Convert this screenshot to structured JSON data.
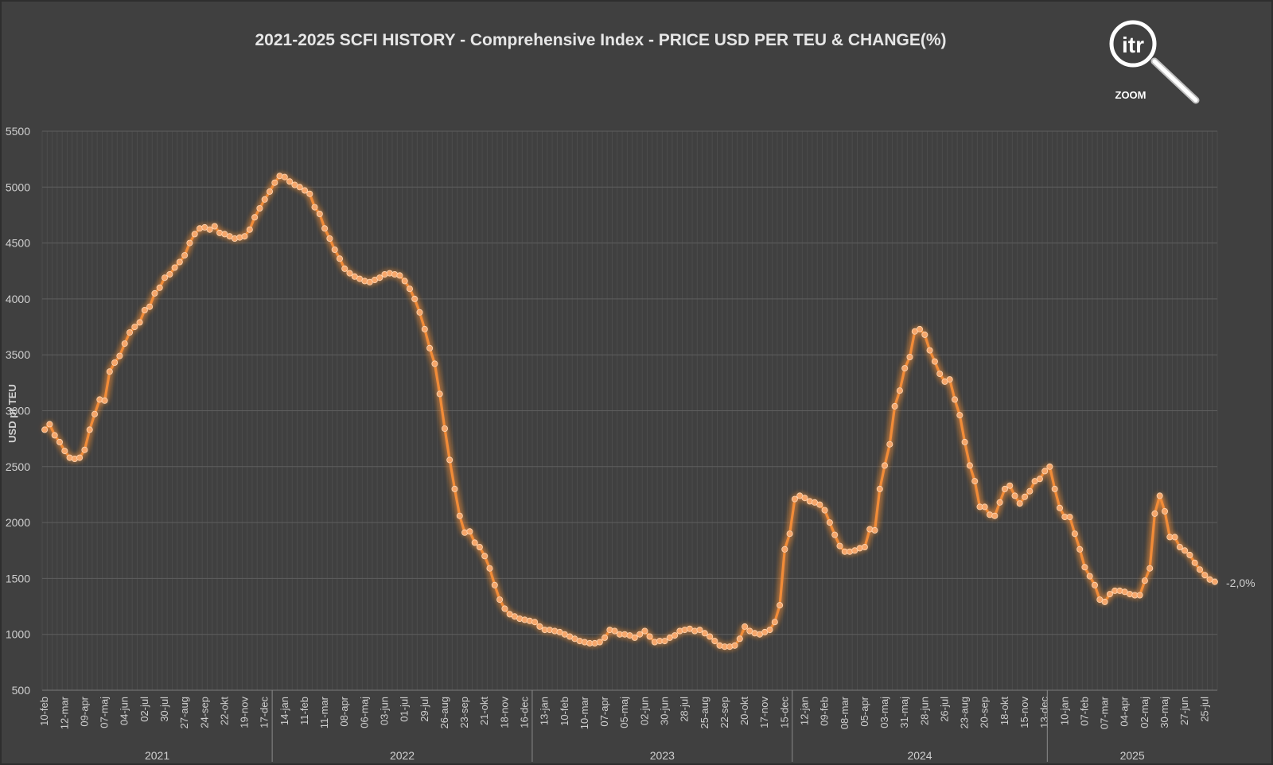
{
  "chart_data": {
    "type": "line",
    "title": "2021-2025 SCFI HISTORY - Comprehensive Index - PRICE USD PER TEU & CHANGE(%)",
    "ylabel": "USD pr TEU",
    "xlabel": "",
    "ylim": [
      500,
      5500
    ],
    "yticks": [
      500,
      1000,
      1500,
      2000,
      2500,
      3000,
      3500,
      4000,
      4500,
      5000,
      5500
    ],
    "grid": true,
    "line_color": "#f28c38",
    "end_label": "-2,0%",
    "x_tick_labels": [
      "10-feb",
      "12-mar",
      "09-apr",
      "07-maj",
      "04-jun",
      "02-jul",
      "30-jul",
      "27-aug",
      "24-sep",
      "22-okt",
      "19-nov",
      "17-dec",
      "14-jan",
      "11-feb",
      "11-mar",
      "08-apr",
      "06-maj",
      "03-jun",
      "01-jul",
      "29-jul",
      "26-aug",
      "23-sep",
      "21-okt",
      "18-nov",
      "16-dec",
      "13-jan",
      "10-feb",
      "10-mar",
      "07-apr",
      "05-maj",
      "02-jun",
      "30-jun",
      "28-jul",
      "25-aug",
      "22-sep",
      "20-okt",
      "17-nov",
      "15-dec",
      "12-jan",
      "09-feb",
      "08-mar",
      "05-apr",
      "03-maj",
      "31-maj",
      "28-jun",
      "26-jul",
      "23-aug",
      "20-sep",
      "18-okt",
      "15-nov",
      "13-dec",
      "10-jan",
      "07-feb",
      "07-mar",
      "04-apr",
      "02-maj",
      "30-maj",
      "27-jun",
      "25-jul"
    ],
    "x_tick_week_index": [
      0,
      4,
      8,
      12,
      16,
      20,
      24,
      28,
      32,
      36,
      40,
      44,
      48,
      52,
      56,
      60,
      64,
      68,
      72,
      76,
      80,
      84,
      88,
      92,
      96,
      100,
      104,
      108,
      112,
      116,
      120,
      124,
      128,
      132,
      136,
      140,
      144,
      148,
      152,
      156,
      160,
      164,
      168,
      172,
      176,
      180,
      184,
      188,
      192,
      196,
      200,
      204,
      208,
      212,
      216,
      220,
      224,
      228,
      232
    ],
    "years": [
      {
        "label": "2021",
        "start_week": 0,
        "end_week": 46
      },
      {
        "label": "2022",
        "start_week": 46,
        "end_week": 98
      },
      {
        "label": "2023",
        "start_week": 98,
        "end_week": 150
      },
      {
        "label": "2024",
        "start_week": 150,
        "end_week": 201
      },
      {
        "label": "2025",
        "start_week": 201,
        "end_week": 235
      }
    ],
    "weeks": 235,
    "series": [
      {
        "values": [
          2830,
          2880,
          2780,
          2720,
          2640,
          2580,
          2570,
          2580,
          2650,
          2830,
          2970,
          3100,
          3090,
          3350,
          3430,
          3490,
          3600,
          3700,
          3750,
          3790,
          3900,
          3930,
          4050,
          4100,
          4190,
          4220,
          4280,
          4330,
          4390,
          4500,
          4580,
          4630,
          4640,
          4620,
          4650,
          4590,
          4580,
          4560,
          4540,
          4550,
          4560,
          4620,
          4730,
          4810,
          4890,
          4960,
          5040,
          5100,
          5090,
          5050,
          5020,
          5000,
          4970,
          4940,
          4820,
          4760,
          4630,
          4540,
          4440,
          4360,
          4270,
          4230,
          4200,
          4180,
          4160,
          4150,
          4170,
          4190,
          4220,
          4230,
          4220,
          4210,
          4160,
          4090,
          4000,
          3880,
          3730,
          3560,
          3420,
          3150,
          2840,
          2560,
          2300,
          2060,
          1910,
          1920,
          1820,
          1780,
          1700,
          1590,
          1440,
          1310,
          1230,
          1180,
          1160,
          1140,
          1130,
          1120,
          1110,
          1070,
          1040,
          1040,
          1030,
          1020,
          1000,
          980,
          960,
          940,
          930,
          920,
          920,
          930,
          970,
          1040,
          1030,
          1000,
          1000,
          990,
          970,
          1000,
          1030,
          980,
          930,
          940,
          940,
          970,
          990,
          1030,
          1040,
          1050,
          1030,
          1040,
          1010,
          980,
          940,
          900,
          890,
          890,
          900,
          960,
          1070,
          1030,
          1010,
          1000,
          1020,
          1040,
          1110,
          1260,
          1760,
          1900,
          2210,
          2240,
          2220,
          2190,
          2180,
          2160,
          2110,
          2000,
          1890,
          1790,
          1740,
          1740,
          1750,
          1770,
          1780,
          1940,
          1930,
          2300,
          2510,
          2700,
          3040,
          3180,
          3380,
          3480,
          3710,
          3730,
          3680,
          3540,
          3440,
          3330,
          3260,
          3280,
          3100,
          2960,
          2720,
          2510,
          2370,
          2140,
          2140,
          2070,
          2060,
          2180,
          2300,
          2330,
          2240,
          2170,
          2230,
          2280,
          2370,
          2390,
          2460,
          2500,
          2300,
          2130,
          2050,
          2050,
          1900,
          1760,
          1600,
          1520,
          1440,
          1310,
          1290,
          1360,
          1390,
          1390,
          1380,
          1360,
          1350,
          1350,
          1480,
          1590,
          2080,
          2240,
          2100,
          1870,
          1870,
          1780,
          1750,
          1710,
          1640,
          1580,
          1530,
          1490,
          1470
        ]
      }
    ]
  },
  "logo": {
    "text": "itr",
    "caption": "ZOOM"
  }
}
